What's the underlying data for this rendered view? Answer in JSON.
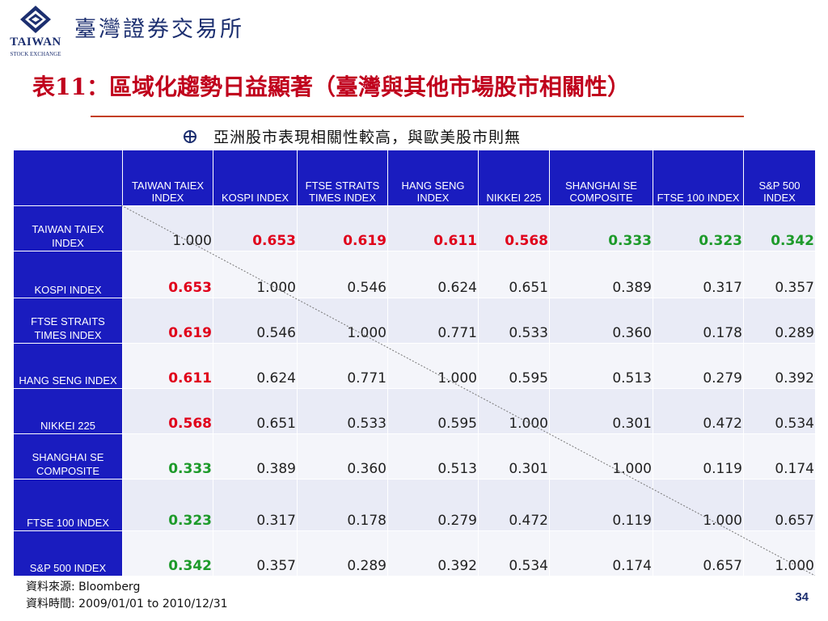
{
  "header": {
    "logo_word": "TAIWAN",
    "logo_sub": "STOCK EXCHANGE",
    "org_name": "臺灣證券交易所"
  },
  "slide": {
    "title": "表11：區域化趨勢日益顯著（臺灣與其他市場股市相關性）",
    "bullet": "亞洲股市表現相關性較高，與歐美股市則無"
  },
  "table": {
    "corner": "",
    "columns": [
      "TAIWAN TAIEX INDEX",
      "KOSPI INDEX",
      "FTSE STRAITS TIMES INDEX",
      "HANG SENG INDEX",
      "NIKKEI 225",
      "SHANGHAI SE COMPOSITE",
      "FTSE 100 INDEX",
      "S&P 500 INDEX"
    ],
    "rows": [
      {
        "label": "TAIWAN TAIEX INDEX",
        "values": [
          "1.000",
          "0.653",
          "0.619",
          "0.611",
          "0.568",
          "0.333",
          "0.323",
          "0.342"
        ]
      },
      {
        "label": "KOSPI INDEX",
        "values": [
          "0.653",
          "1.000",
          "0.546",
          "0.624",
          "0.651",
          "0.389",
          "0.317",
          "0.357"
        ]
      },
      {
        "label": "FTSE STRAITS TIMES INDEX",
        "values": [
          "0.619",
          "0.546",
          "1.000",
          "0.771",
          "0.533",
          "0.360",
          "0.178",
          "0.289"
        ]
      },
      {
        "label": "HANG SENG INDEX",
        "values": [
          "0.611",
          "0.624",
          "0.771",
          "1.000",
          "0.595",
          "0.513",
          "0.279",
          "0.392"
        ]
      },
      {
        "label": "NIKKEI 225",
        "values": [
          "0.568",
          "0.651",
          "0.533",
          "0.595",
          "1.000",
          "0.301",
          "0.472",
          "0.534"
        ]
      },
      {
        "label": "SHANGHAI SE COMPOSITE",
        "values": [
          "0.333",
          "0.389",
          "0.360",
          "0.513",
          "0.301",
          "1.000",
          "0.119",
          "0.174"
        ]
      },
      {
        "label": "FTSE 100 INDEX",
        "values": [
          "0.323",
          "0.317",
          "0.178",
          "0.279",
          "0.472",
          "0.119",
          "1.000",
          "0.657"
        ]
      },
      {
        "label": "S&P 500 INDEX",
        "values": [
          "0.342",
          "0.357",
          "0.289",
          "0.392",
          "0.534",
          "0.174",
          "0.657",
          "1.000"
        ]
      }
    ]
  },
  "colors": {
    "high_correlation": "#e0001a",
    "low_correlation": "#1d9a2a",
    "header_fill": "#1a1cbf",
    "title": "#c0001c"
  },
  "footer": {
    "source": "資料來源: Bloomberg",
    "period": "資料時間: 2009/01/01 to 2010/12/31",
    "page_number": "34"
  }
}
